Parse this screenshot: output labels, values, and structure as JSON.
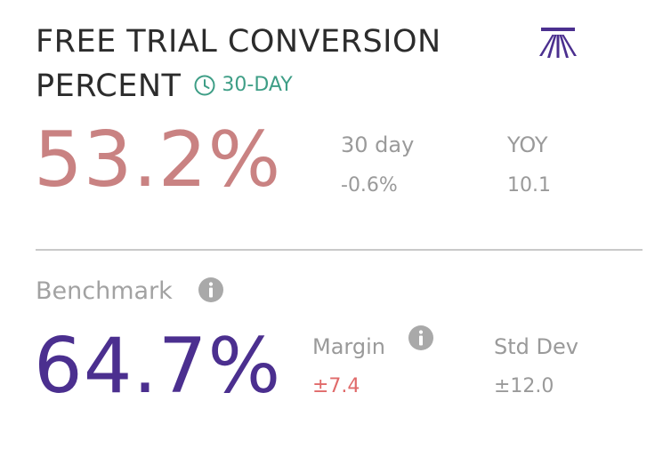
{
  "title": {
    "line1": "FREE TRIAL CONVERSION",
    "line2": "PERCENT"
  },
  "period_badge": {
    "icon": "clock-icon",
    "label": "30-DAY",
    "color": "#3e9e86"
  },
  "logo": {
    "icon": "sunrise-logo-icon",
    "color": "#4b2f8f"
  },
  "metric": {
    "value": "53.2%",
    "color": "#c98282",
    "thirty_day": {
      "label": "30 day",
      "value": "-0.6%"
    },
    "yoy": {
      "label": "YOY",
      "value": "10.1"
    }
  },
  "benchmark": {
    "label": "Benchmark",
    "info_icon": "info-icon",
    "value": "64.7%",
    "color": "#4b2f8f",
    "margin": {
      "label": "Margin",
      "info_icon": "info-icon",
      "value": "±7.4",
      "color": "#e06a6a"
    },
    "std_dev": {
      "label": "Std Dev",
      "value": "±12.0"
    }
  }
}
